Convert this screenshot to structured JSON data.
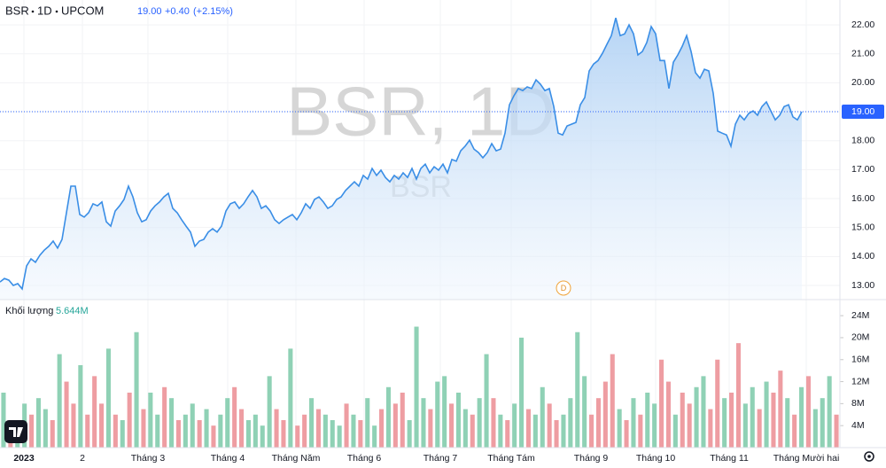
{
  "header": {
    "symbol": "BSR",
    "interval": "1D",
    "exchange": "UPCOM",
    "price": "19.00",
    "change": "+0.40",
    "change_pct": "(+2.15%)"
  },
  "chart_data": [
    {
      "type": "area",
      "watermark": [
        "BSR, 1D",
        "BSR"
      ],
      "series": [
        {
          "color": "#3a8ee6",
          "values": [
            13.12,
            13.24,
            13.18,
            13.0,
            13.06,
            12.88,
            13.67,
            13.92,
            13.8,
            14.04,
            14.22,
            14.35,
            14.53,
            14.29,
            14.59,
            15.51,
            16.43,
            16.43,
            15.45,
            15.36,
            15.51,
            15.82,
            15.75,
            15.88,
            15.2,
            15.05,
            15.57,
            15.75,
            15.97,
            16.43,
            16.06,
            15.51,
            15.2,
            15.27,
            15.57,
            15.75,
            15.88,
            16.06,
            16.18,
            15.66,
            15.51,
            15.27,
            15.05,
            14.84,
            14.35,
            14.53,
            14.59,
            14.84,
            14.96,
            14.84,
            15.05,
            15.57,
            15.82,
            15.88,
            15.66,
            15.82,
            16.06,
            16.28,
            16.06,
            15.66,
            15.75,
            15.57,
            15.27,
            15.14,
            15.27,
            15.36,
            15.45,
            15.27,
            15.51,
            15.82,
            15.66,
            15.97,
            16.06,
            15.88,
            15.66,
            15.75,
            15.97,
            16.06,
            16.28,
            16.43,
            16.58,
            16.43,
            16.8,
            16.67,
            17.04,
            16.8,
            16.98,
            16.73,
            16.58,
            16.8,
            16.67,
            16.89,
            16.73,
            17.04,
            16.67,
            17.04,
            17.19,
            16.89,
            17.1,
            16.98,
            17.19,
            16.89,
            17.35,
            17.29,
            17.65,
            17.81,
            18.02,
            17.71,
            17.59,
            17.41,
            17.59,
            17.9,
            17.65,
            17.71,
            18.26,
            19.24,
            19.55,
            19.8,
            19.73,
            19.86,
            19.8,
            20.1,
            19.95,
            19.73,
            19.8,
            19.18,
            18.26,
            18.2,
            18.51,
            18.57,
            18.63,
            19.24,
            19.49,
            20.41,
            20.65,
            20.77,
            21.02,
            21.33,
            21.63,
            22.24,
            21.63,
            21.69,
            22.0,
            21.69,
            20.96,
            21.08,
            21.39,
            21.94,
            21.69,
            20.77,
            20.77,
            19.8,
            20.71,
            20.96,
            21.26,
            21.63,
            21.08,
            20.35,
            20.16,
            20.47,
            20.41,
            19.64,
            18.33,
            18.26,
            18.2,
            17.81,
            18.57,
            18.88,
            18.72,
            18.94,
            19.03,
            18.88,
            19.18,
            19.34,
            19.03,
            18.72,
            18.88,
            19.18,
            19.24,
            18.82,
            18.72,
            19.0
          ]
        }
      ],
      "xlim": [
        0,
        189.6
      ],
      "ylim": [
        12.51,
        22.86
      ],
      "yticks": [
        {
          "value": 13,
          "label": "13.00"
        },
        {
          "value": 14,
          "label": "14.00"
        },
        {
          "value": 15,
          "label": "15.00"
        },
        {
          "value": 16,
          "label": "16.00"
        },
        {
          "value": 17,
          "label": "17.00"
        },
        {
          "value": 18,
          "label": "18.00"
        },
        {
          "value": 19,
          "label": "19.00"
        },
        {
          "value": 20,
          "label": "20.00"
        },
        {
          "value": 21,
          "label": "21.00"
        },
        {
          "value": 22,
          "label": "22.00"
        }
      ],
      "xticks": [
        {
          "value": 5.4,
          "label": "2023"
        },
        {
          "value": 18.6,
          "label": "2"
        },
        {
          "value": 33.4,
          "label": "Tháng 3"
        },
        {
          "value": 51.4,
          "label": "Tháng 4"
        },
        {
          "value": 66.8,
          "label": "Tháng Năm"
        },
        {
          "value": 82.2,
          "label": "Tháng 6"
        },
        {
          "value": 99.4,
          "label": "Tháng 7"
        },
        {
          "value": 115.4,
          "label": "Tháng Tám"
        },
        {
          "value": 133.4,
          "label": "Tháng 9"
        },
        {
          "value": 148,
          "label": "Tháng 10"
        },
        {
          "value": 164.6,
          "label": "Tháng 11"
        },
        {
          "value": 182,
          "label": "Tháng Mười hai"
        }
      ],
      "grid": true,
      "last_price": {
        "value": 19,
        "label": "19.00"
      },
      "event": {
        "x": 127.2,
        "label": "D"
      }
    },
    {
      "type": "bar",
      "title": "Khối lượng",
      "subtitle": "5.644M",
      "series": [
        {
          "color": "#8fd1b5",
          "values": [
            10,
            null,
            4,
            8,
            null,
            9,
            7,
            null,
            17,
            null,
            null,
            15,
            null,
            null,
            null,
            18,
            null,
            5,
            null,
            21,
            null,
            10,
            6,
            null,
            9,
            null,
            6,
            8,
            null,
            7,
            null,
            6,
            9,
            null,
            null,
            5,
            6,
            4,
            13,
            null,
            null,
            18,
            null,
            null,
            9,
            null,
            6,
            5,
            4,
            null,
            6,
            null,
            9,
            4,
            null,
            11,
            null,
            null,
            5,
            22,
            9,
            null,
            12,
            13,
            null,
            10,
            7,
            null,
            9,
            17,
            null,
            6,
            null,
            8,
            20,
            null,
            6,
            11,
            null,
            null,
            6,
            9,
            21,
            13,
            null,
            null,
            null,
            null,
            7,
            null,
            9,
            null,
            10,
            8,
            null,
            null,
            6,
            null,
            null,
            11,
            13,
            null,
            null,
            9,
            null,
            null,
            8,
            11,
            null,
            12,
            null,
            null,
            9,
            null,
            11,
            null,
            7,
            9,
            13,
            null
          ]
        },
        {
          "color": "#ee9da2",
          "values": [
            null,
            5,
            null,
            null,
            6,
            null,
            null,
            5,
            null,
            12,
            8,
            null,
            6,
            13,
            8,
            null,
            6,
            null,
            10,
            null,
            7,
            null,
            null,
            11,
            null,
            5,
            null,
            null,
            5,
            null,
            4,
            null,
            null,
            11,
            7,
            null,
            null,
            null,
            null,
            7,
            5,
            null,
            4,
            6,
            null,
            7,
            null,
            null,
            null,
            8,
            null,
            5,
            null,
            null,
            7,
            null,
            8,
            10,
            null,
            null,
            null,
            7,
            null,
            null,
            8,
            null,
            null,
            6,
            null,
            null,
            9,
            null,
            5,
            null,
            null,
            7,
            null,
            null,
            8,
            5,
            null,
            null,
            null,
            null,
            6,
            9,
            12,
            17,
            null,
            5,
            null,
            6,
            null,
            null,
            16,
            12,
            null,
            10,
            8,
            null,
            null,
            7,
            16,
            null,
            10,
            19,
            null,
            null,
            7,
            null,
            10,
            14,
            null,
            6,
            null,
            13,
            null,
            null,
            null,
            6
          ]
        }
      ],
      "ylim": [
        0,
        26.6
      ],
      "yticks": [
        {
          "value": 4,
          "label": "4M"
        },
        {
          "value": 8,
          "label": "8M"
        },
        {
          "value": 12,
          "label": "12M"
        },
        {
          "value": 16,
          "label": "16M"
        },
        {
          "value": 20,
          "label": "20M"
        },
        {
          "value": 24,
          "label": "24M"
        }
      ]
    }
  ]
}
